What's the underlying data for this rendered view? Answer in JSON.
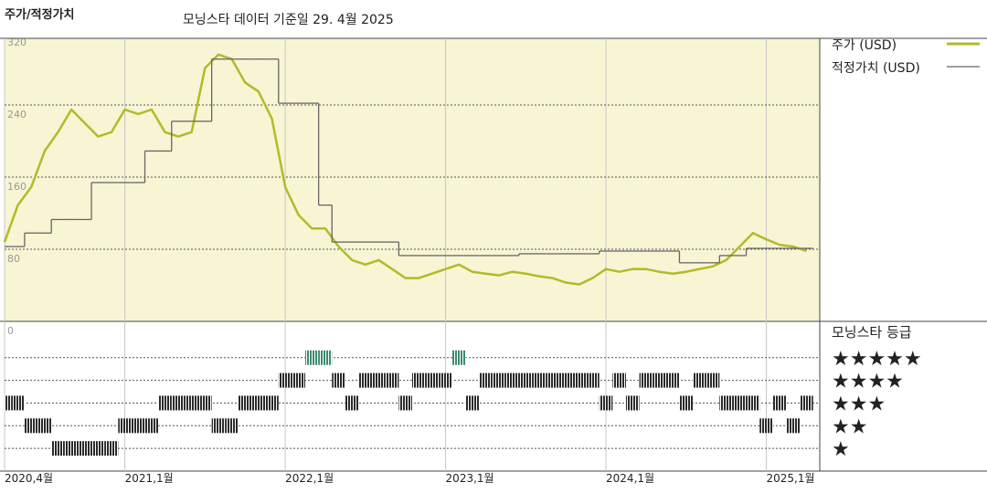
{
  "chart_data": [
    {
      "type": "line",
      "title": "주가/적정가치",
      "subtitle": "모닝스타 데이터 기준일 29. 4월 2025",
      "x": [
        "2020-04",
        "2020-05",
        "2020-06",
        "2020-07",
        "2020-08",
        "2020-09",
        "2020-10",
        "2020-11",
        "2020-12",
        "2021-01",
        "2021-02",
        "2021-03",
        "2021-04",
        "2021-05",
        "2021-06",
        "2021-07",
        "2021-08",
        "2021-09",
        "2021-10",
        "2021-11",
        "2021-12",
        "2022-01",
        "2022-02",
        "2022-03",
        "2022-04",
        "2022-05",
        "2022-06",
        "2022-07",
        "2022-08",
        "2022-09",
        "2022-10",
        "2022-11",
        "2022-12",
        "2023-01",
        "2023-02",
        "2023-03",
        "2023-04",
        "2023-05",
        "2023-06",
        "2023-07",
        "2023-08",
        "2023-09",
        "2023-10",
        "2023-11",
        "2023-12",
        "2024-01",
        "2024-02",
        "2024-03",
        "2024-04",
        "2024-05",
        "2024-06",
        "2024-07",
        "2024-08",
        "2024-09",
        "2024-10",
        "2024-11",
        "2024-12",
        "2025-01",
        "2025-02",
        "2025-03",
        "2025-04"
      ],
      "series": [
        {
          "name": "주가 (USD)",
          "color": "#b3ba2a",
          "values": [
            88,
            129,
            149,
            189,
            210,
            235,
            220,
            205,
            210,
            235,
            230,
            235,
            210,
            205,
            210,
            281,
            296,
            291,
            265,
            255,
            225,
            149,
            118,
            103,
            103,
            83,
            68,
            63,
            68,
            58,
            48,
            48,
            53,
            58,
            63,
            55,
            53,
            51,
            55,
            53,
            50,
            48,
            43,
            41,
            48,
            58,
            55,
            58,
            58,
            55,
            53,
            55,
            58,
            61,
            68,
            83,
            98,
            91,
            85,
            83,
            78
          ]
        },
        {
          "name": "적정가치 (USD)",
          "color": "#666666",
          "step": true,
          "values": [
            83,
            83,
            98,
            98,
            113,
            113,
            113,
            154,
            154,
            154,
            154,
            189,
            189,
            222,
            222,
            222,
            291,
            291,
            291,
            291,
            291,
            242,
            242,
            242,
            129,
            88,
            88,
            88,
            88,
            88,
            73,
            73,
            73,
            73,
            73,
            73,
            73,
            73,
            73,
            75,
            75,
            75,
            75,
            75,
            75,
            78,
            78,
            78,
            78,
            78,
            78,
            65,
            65,
            65,
            73,
            73,
            81,
            81,
            81,
            81,
            81
          ]
        }
      ],
      "xlim": [
        "2020-04",
        "2025-05"
      ],
      "xticks": [
        {
          "value": "2020-04",
          "label": "2020,4월"
        },
        {
          "value": "2021-01",
          "label": "2021,1월"
        },
        {
          "value": "2022-01",
          "label": "2022,1월"
        },
        {
          "value": "2023-01",
          "label": "2023,1월"
        },
        {
          "value": "2024-01",
          "label": "2024,1월"
        },
        {
          "value": "2025-01",
          "label": "2025,1월"
        }
      ],
      "ylim": [
        0,
        314
      ],
      "yticks": [
        0,
        80,
        160,
        240,
        320
      ],
      "grid": true
    },
    {
      "type": "rating",
      "title": "모닝스타 등급",
      "color": "#2b2b2b",
      "top_color": "#3d8a72",
      "values": [
        3,
        3,
        2,
        2,
        1,
        1,
        1,
        1,
        1,
        2,
        2,
        2,
        3,
        3,
        3,
        3,
        2,
        2,
        3,
        3,
        3,
        4,
        4,
        5,
        5,
        4,
        3,
        4,
        4,
        4,
        3,
        4,
        4,
        4,
        5,
        3,
        4,
        4,
        4,
        4,
        4,
        4,
        4,
        4,
        4,
        3,
        4,
        3,
        4,
        4,
        4,
        3,
        4,
        4,
        3,
        3,
        3,
        2,
        3,
        2,
        3
      ],
      "ylim": [
        0,
        6.6
      ],
      "yticks": [
        {
          "value": 5,
          "label": "★★★★★"
        },
        {
          "value": 4,
          "label": "★★★★"
        },
        {
          "value": 3,
          "label": "★★★"
        },
        {
          "value": 2,
          "label": "★★"
        },
        {
          "value": 1,
          "label": "★"
        }
      ]
    }
  ]
}
